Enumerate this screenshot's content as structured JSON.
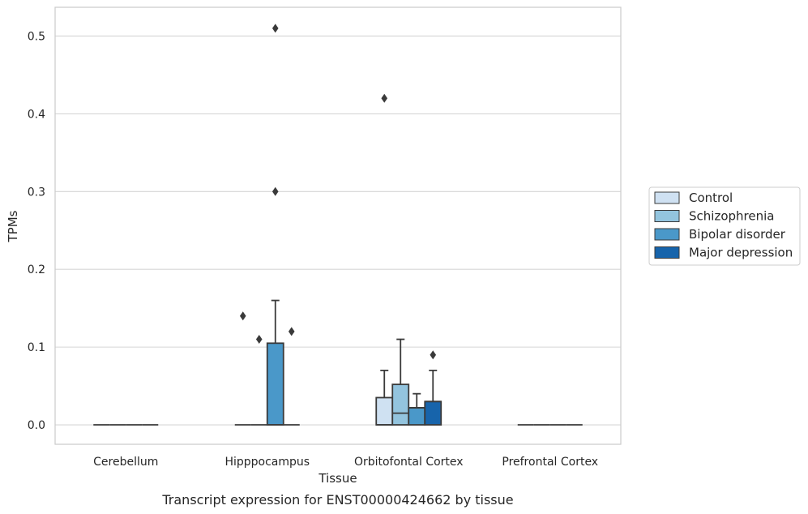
{
  "chart_data": {
    "type": "box",
    "caption": "Transcript expression for ENST00000424662 by tissue",
    "xlabel": "Tissue",
    "ylabel": "TPMs",
    "ylim": [
      -0.025,
      0.537
    ],
    "yticks": [
      "0.0",
      "0.1",
      "0.2",
      "0.3",
      "0.4",
      "0.5"
    ],
    "grid": "horizontal",
    "legend_position": "right",
    "categories": [
      "Cerebellum",
      "Hipppocampus",
      "Orbitofontal Cortex",
      "Prefrontal Cortex"
    ],
    "series": [
      {
        "name": "Control",
        "color": "#cfe1f2"
      },
      {
        "name": "Schizophrenia",
        "color": "#93c4de"
      },
      {
        "name": "Bipolar disorder",
        "color": "#4a98c9"
      },
      {
        "name": "Major depression",
        "color": "#1764ab"
      }
    ],
    "boxes": [
      {
        "category": "Cerebellum",
        "series": "Control",
        "q1": 0,
        "median": 0,
        "q3": 0,
        "whisker_low": 0,
        "whisker_high": 0,
        "outliers": []
      },
      {
        "category": "Cerebellum",
        "series": "Schizophrenia",
        "q1": 0,
        "median": 0,
        "q3": 0,
        "whisker_low": 0,
        "whisker_high": 0,
        "outliers": []
      },
      {
        "category": "Cerebellum",
        "series": "Bipolar disorder",
        "q1": 0,
        "median": 0,
        "q3": 0,
        "whisker_low": 0,
        "whisker_high": 0,
        "outliers": []
      },
      {
        "category": "Cerebellum",
        "series": "Major depression",
        "q1": 0,
        "median": 0,
        "q3": 0,
        "whisker_low": 0,
        "whisker_high": 0,
        "outliers": []
      },
      {
        "category": "Hipppocampus",
        "series": "Control",
        "q1": 0,
        "median": 0,
        "q3": 0,
        "whisker_low": 0,
        "whisker_high": 0,
        "outliers": [
          0.14
        ]
      },
      {
        "category": "Hipppocampus",
        "series": "Schizophrenia",
        "q1": 0,
        "median": 0,
        "q3": 0,
        "whisker_low": 0,
        "whisker_high": 0,
        "outliers": [
          0.11
        ]
      },
      {
        "category": "Hipppocampus",
        "series": "Bipolar disorder",
        "q1": 0,
        "median": 0,
        "q3": 0.105,
        "whisker_low": 0,
        "whisker_high": 0.16,
        "outliers": [
          0.3,
          0.51
        ]
      },
      {
        "category": "Hipppocampus",
        "series": "Major depression",
        "q1": 0,
        "median": 0,
        "q3": 0,
        "whisker_low": 0,
        "whisker_high": 0,
        "outliers": [
          0.12
        ]
      },
      {
        "category": "Orbitofontal Cortex",
        "series": "Control",
        "q1": 0,
        "median": 0,
        "q3": 0.035,
        "whisker_low": 0,
        "whisker_high": 0.07,
        "outliers": [
          0.42
        ]
      },
      {
        "category": "Orbitofontal Cortex",
        "series": "Schizophrenia",
        "q1": 0,
        "median": 0.015,
        "q3": 0.052,
        "whisker_low": 0,
        "whisker_high": 0.11,
        "outliers": []
      },
      {
        "category": "Orbitofontal Cortex",
        "series": "Bipolar disorder",
        "q1": 0,
        "median": 0.022,
        "q3": 0.022,
        "whisker_low": 0,
        "whisker_high": 0.04,
        "outliers": []
      },
      {
        "category": "Orbitofontal Cortex",
        "series": "Major depression",
        "q1": 0,
        "median": 0.03,
        "q3": 0.03,
        "whisker_low": 0,
        "whisker_high": 0.07,
        "outliers": [
          0.09
        ]
      },
      {
        "category": "Prefrontal Cortex",
        "series": "Control",
        "q1": 0,
        "median": 0,
        "q3": 0,
        "whisker_low": 0,
        "whisker_high": 0,
        "outliers": []
      },
      {
        "category": "Prefrontal Cortex",
        "series": "Schizophrenia",
        "q1": 0,
        "median": 0,
        "q3": 0,
        "whisker_low": 0,
        "whisker_high": 0,
        "outliers": []
      },
      {
        "category": "Prefrontal Cortex",
        "series": "Bipolar disorder",
        "q1": 0,
        "median": 0,
        "q3": 0,
        "whisker_low": 0,
        "whisker_high": 0,
        "outliers": []
      },
      {
        "category": "Prefrontal Cortex",
        "series": "Major depression",
        "q1": 0,
        "median": 0,
        "q3": 0,
        "whisker_low": 0,
        "whisker_high": 0,
        "outliers": []
      }
    ]
  }
}
